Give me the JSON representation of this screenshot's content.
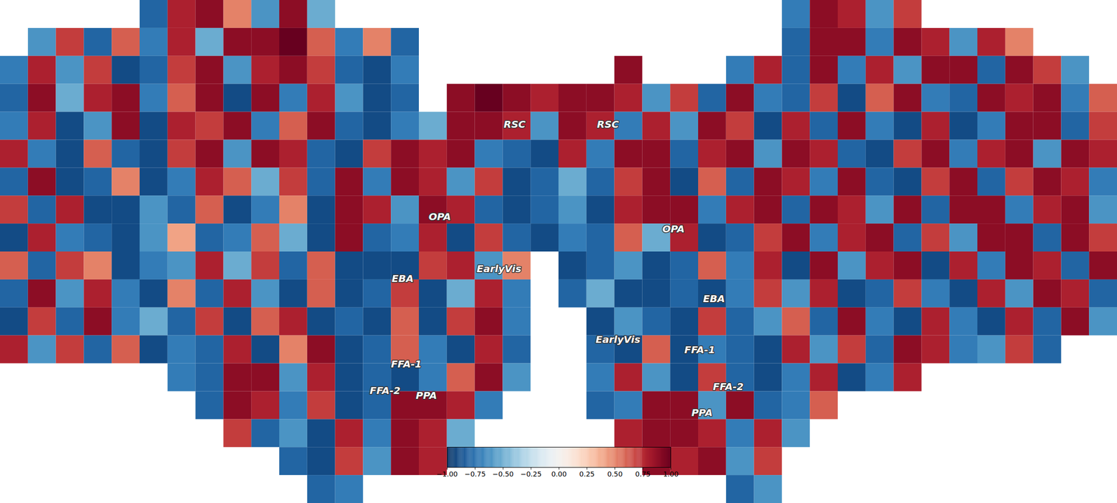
{
  "chart_data": {
    "type": "heatmap",
    "color": "RdBu_r",
    "tick_labels": false,
    "cells": [
      [
        null,
        null,
        null,
        null,
        null,
        -0.8,
        0.8,
        0.9,
        0.5,
        -0.6,
        0.9,
        -0.5,
        null,
        null,
        null,
        null,
        null,
        null,
        null,
        null,
        null,
        null,
        null,
        null,
        null,
        null,
        null,
        null,
        -0.7,
        0.9,
        0.8,
        -0.6,
        0.7,
        null,
        null,
        null,
        null,
        null,
        null,
        null
      ],
      [
        null,
        -0.6,
        0.7,
        -0.8,
        0.6,
        -0.7,
        0.8,
        -0.5,
        0.9,
        0.9,
        1,
        0.6,
        -0.7,
        0.5,
        -0.8,
        null,
        null,
        null,
        null,
        null,
        null,
        null,
        null,
        null,
        null,
        null,
        null,
        null,
        -0.8,
        0.9,
        0.9,
        -0.7,
        0.9,
        0.8,
        -0.6,
        0.8,
        0.5,
        null,
        null,
        null
      ],
      [
        -0.7,
        0.8,
        -0.6,
        0.7,
        -0.9,
        -0.8,
        0.7,
        0.9,
        -0.6,
        0.8,
        0.9,
        0.7,
        -0.8,
        -0.9,
        -0.7,
        null,
        null,
        null,
        null,
        null,
        null,
        null,
        0.9,
        null,
        null,
        null,
        -0.7,
        0.8,
        -0.8,
        0.9,
        -0.7,
        0.8,
        -0.6,
        0.9,
        0.9,
        -0.8,
        0.9,
        0.7,
        -0.6,
        null
      ],
      [
        -0.8,
        0.9,
        -0.5,
        0.8,
        0.9,
        -0.7,
        0.6,
        0.9,
        -0.9,
        0.9,
        -0.7,
        0.8,
        -0.6,
        -0.9,
        -0.8,
        null,
        0.9,
        1,
        0.9,
        0.8,
        0.9,
        0.9,
        0.8,
        -0.6,
        0.7,
        -0.8,
        0.9,
        -0.7,
        -0.8,
        0.7,
        -0.9,
        0.6,
        0.9,
        -0.7,
        -0.8,
        0.9,
        0.8,
        0.9,
        -0.7,
        0.6
      ],
      [
        -0.7,
        0.8,
        -0.9,
        -0.6,
        0.9,
        -0.9,
        0.8,
        0.7,
        0.9,
        -0.7,
        0.6,
        0.9,
        -0.8,
        -0.9,
        -0.7,
        -0.5,
        0.9,
        0.9,
        0.8,
        -0.6,
        0.9,
        0.8,
        -0.7,
        0.8,
        -0.6,
        0.9,
        0.7,
        -0.9,
        0.8,
        -0.8,
        0.9,
        -0.7,
        -0.9,
        0.8,
        -0.9,
        -0.7,
        0.9,
        0.9,
        -0.8,
        0.7
      ],
      [
        0.8,
        -0.7,
        -0.9,
        0.6,
        -0.8,
        -0.9,
        0.7,
        0.9,
        -0.6,
        0.9,
        0.8,
        -0.8,
        -0.9,
        0.7,
        0.9,
        0.8,
        0.9,
        -0.7,
        -0.8,
        -0.9,
        0.8,
        -0.7,
        0.9,
        0.9,
        -0.8,
        0.8,
        0.9,
        -0.6,
        0.9,
        0.8,
        -0.8,
        -0.9,
        0.7,
        0.9,
        -0.7,
        0.8,
        0.9,
        -0.6,
        0.9,
        0.8
      ],
      [
        -0.8,
        0.9,
        -0.9,
        -0.8,
        0.5,
        -0.9,
        -0.7,
        0.8,
        0.6,
        -0.5,
        0.7,
        -0.8,
        0.9,
        -0.7,
        0.9,
        0.8,
        -0.6,
        0.7,
        -0.9,
        -0.8,
        -0.5,
        -0.8,
        0.7,
        0.9,
        -0.9,
        0.6,
        -0.8,
        0.9,
        0.8,
        -0.7,
        0.9,
        -0.8,
        -0.9,
        0.7,
        0.9,
        -0.8,
        0.7,
        0.9,
        0.8,
        -0.7
      ],
      [
        0.7,
        -0.8,
        0.8,
        -0.9,
        -0.9,
        -0.6,
        -0.8,
        0.6,
        -0.9,
        -0.7,
        0.5,
        -0.9,
        0.9,
        0.8,
        -0.6,
        0.9,
        0.8,
        -0.8,
        -0.9,
        -0.8,
        -0.6,
        -0.9,
        0.8,
        0.9,
        0.9,
        -0.7,
        0.8,
        0.9,
        -0.8,
        0.9,
        0.8,
        -0.6,
        0.9,
        -0.8,
        0.9,
        0.9,
        -0.7,
        0.8,
        0.9,
        -0.6
      ],
      [
        -0.9,
        0.8,
        -0.7,
        -0.8,
        -0.9,
        -0.6,
        0.4,
        -0.8,
        -0.7,
        0.6,
        -0.5,
        -0.9,
        0.9,
        -0.8,
        -0.7,
        0.8,
        -0.9,
        0.7,
        -0.8,
        -0.9,
        -0.7,
        -0.8,
        0.6,
        -0.5,
        0.8,
        -0.9,
        -0.8,
        0.7,
        0.9,
        -0.7,
        0.8,
        0.9,
        -0.8,
        0.7,
        -0.6,
        0.9,
        0.9,
        -0.8,
        0.9,
        0.7
      ],
      [
        0.6,
        -0.8,
        0.7,
        0.5,
        -0.9,
        -0.7,
        -0.6,
        0.8,
        -0.5,
        0.7,
        -0.8,
        0.6,
        -0.9,
        -0.9,
        -0.9,
        0.7,
        0.8,
        -0.6,
        0.5,
        null,
        -0.9,
        -0.8,
        -0.6,
        -0.9,
        -0.8,
        0.6,
        -0.7,
        0.8,
        -0.9,
        0.9,
        -0.6,
        0.8,
        0.9,
        -0.9,
        0.8,
        -0.7,
        0.9,
        0.8,
        -0.8,
        0.9
      ],
      [
        -0.8,
        0.9,
        -0.6,
        0.8,
        -0.7,
        -0.9,
        0.5,
        -0.8,
        0.8,
        -0.6,
        -0.9,
        0.6,
        -0.9,
        -0.8,
        0.7,
        -0.9,
        -0.5,
        0.8,
        -0.7,
        null,
        -0.8,
        -0.5,
        -0.9,
        -0.9,
        -0.8,
        -0.9,
        -0.7,
        0.7,
        -0.6,
        0.8,
        -0.9,
        -0.8,
        0.7,
        -0.7,
        -0.9,
        0.8,
        -0.6,
        0.9,
        0.8,
        -0.8
      ],
      [
        -0.9,
        0.7,
        -0.8,
        0.9,
        -0.7,
        -0.5,
        -0.8,
        0.7,
        -0.9,
        0.6,
        0.8,
        -0.9,
        -0.8,
        -0.9,
        0.6,
        -0.9,
        0.7,
        0.9,
        -0.7,
        null,
        null,
        -0.9,
        -0.6,
        -0.8,
        -0.9,
        0.7,
        -0.8,
        -0.6,
        0.6,
        -0.8,
        0.9,
        -0.7,
        -0.9,
        0.8,
        -0.7,
        -0.9,
        0.8,
        -0.8,
        0.9,
        -0.6
      ],
      [
        0.8,
        -0.6,
        0.7,
        -0.8,
        0.6,
        -0.9,
        -0.7,
        -0.8,
        0.8,
        -0.9,
        0.5,
        0.9,
        -0.9,
        -0.8,
        0.6,
        -0.7,
        -0.9,
        0.8,
        -0.8,
        null,
        null,
        -0.8,
        -0.9,
        0.6,
        -0.9,
        -0.7,
        -0.8,
        -0.9,
        0.8,
        -0.6,
        0.7,
        -0.8,
        0.9,
        0.8,
        -0.7,
        -0.6,
        0.7,
        -0.8,
        null,
        null
      ],
      [
        null,
        null,
        null,
        null,
        null,
        null,
        -0.7,
        -0.8,
        0.9,
        0.9,
        -0.6,
        0.8,
        -0.9,
        -0.8,
        -0.9,
        -0.7,
        0.6,
        0.9,
        -0.6,
        null,
        null,
        -0.7,
        0.8,
        -0.6,
        -0.9,
        0.7,
        -0.8,
        -0.9,
        -0.7,
        0.8,
        -0.9,
        -0.7,
        0.8,
        null,
        null,
        null,
        null,
        null,
        null,
        null
      ],
      [
        null,
        null,
        null,
        null,
        null,
        null,
        null,
        -0.8,
        0.9,
        0.8,
        -0.7,
        0.7,
        -0.9,
        -0.8,
        0.9,
        0.9,
        0.8,
        -0.7,
        null,
        null,
        null,
        -0.8,
        -0.7,
        0.9,
        0.9,
        -0.6,
        0.9,
        -0.8,
        -0.7,
        0.6,
        null,
        null,
        null,
        null,
        null,
        null,
        null,
        null,
        null,
        null
      ],
      [
        null,
        null,
        null,
        null,
        null,
        null,
        null,
        null,
        0.7,
        -0.8,
        -0.6,
        -0.9,
        0.8,
        -0.7,
        0.9,
        0.8,
        -0.5,
        null,
        null,
        null,
        null,
        null,
        0.8,
        0.9,
        0.9,
        0.8,
        -0.7,
        0.8,
        -0.6,
        null,
        null,
        null,
        null,
        null,
        null,
        null,
        null,
        null,
        null,
        null
      ],
      [
        null,
        null,
        null,
        null,
        null,
        null,
        null,
        null,
        null,
        null,
        -0.8,
        -0.9,
        0.7,
        -0.6,
        0.9,
        0.8,
        null,
        null,
        null,
        null,
        null,
        null,
        null,
        0.9,
        0.8,
        0.9,
        -0.6,
        0.7,
        null,
        null,
        null,
        null,
        null,
        null,
        null,
        null,
        null,
        null,
        null,
        null
      ],
      [
        null,
        null,
        null,
        null,
        null,
        null,
        null,
        null,
        null,
        null,
        null,
        -0.8,
        -0.7,
        null,
        null,
        null,
        null,
        null,
        null,
        null,
        null,
        null,
        null,
        null,
        null,
        null,
        -0.8,
        -0.6,
        null,
        null,
        null,
        null,
        null,
        null,
        null,
        null,
        null,
        null,
        null,
        null
      ]
    ],
    "annotations": [
      {
        "text": "RSC",
        "x": 18.42,
        "y": 4.45
      },
      {
        "text": "OPA",
        "x": 15.74,
        "y": 7.76
      },
      {
        "text": "EarlyVis",
        "x": 17.86,
        "y": 9.62
      },
      {
        "text": "EBA",
        "x": 14.41,
        "y": 9.97
      },
      {
        "text": "FFA-1",
        "x": 14.54,
        "y": 13.03
      },
      {
        "text": "FFA-2",
        "x": 13.78,
        "y": 13.97
      },
      {
        "text": "PPA",
        "x": 15.26,
        "y": 14.15
      },
      {
        "text": "RSC",
        "x": 21.76,
        "y": 4.45
      },
      {
        "text": "OPA",
        "x": 24.11,
        "y": 8.19
      },
      {
        "text": "EBA",
        "x": 25.56,
        "y": 10.69
      },
      {
        "text": "EarlyVis",
        "x": 22.12,
        "y": 12.14
      },
      {
        "text": "FFA-1",
        "x": 25.05,
        "y": 12.52
      },
      {
        "text": "FFA-2",
        "x": 26.07,
        "y": 13.84
      },
      {
        "text": "PPA",
        "x": 25.13,
        "y": 14.76
      }
    ],
    "colorbar": {
      "range": [
        -1,
        1
      ],
      "ticks": [
        {
          "value": -1,
          "label": "−1.00"
        },
        {
          "value": -0.75,
          "label": "−0.75"
        },
        {
          "value": -0.5,
          "label": "−0.50"
        },
        {
          "value": -0.25,
          "label": "−0.25"
        },
        {
          "value": 0,
          "label": "0.00"
        },
        {
          "value": 0.25,
          "label": "0.25"
        },
        {
          "value": 0.5,
          "label": "0.50"
        },
        {
          "value": 0.75,
          "label": "0.75"
        },
        {
          "value": 1,
          "label": "1.00"
        }
      ]
    }
  }
}
